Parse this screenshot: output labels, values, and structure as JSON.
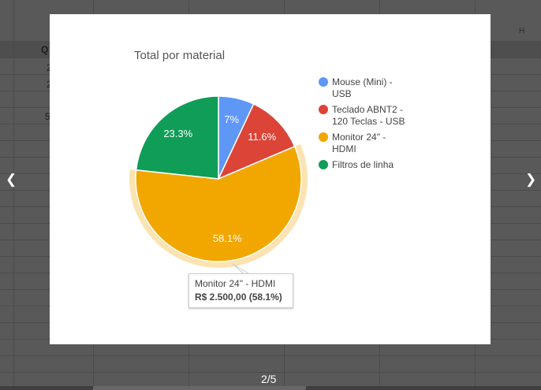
{
  "sheet": {
    "column_letter": "H",
    "visible_cells": [
      "Q",
      "2",
      "2",
      "5"
    ]
  },
  "chart": {
    "title": "Total por material",
    "legend": [
      {
        "label_lines": [
          "Mouse (Mini) -",
          "USB"
        ],
        "color": "#5e97f6"
      },
      {
        "label_lines": [
          "Teclado ABNT2 -",
          "120 Teclas - USB"
        ],
        "color": "#db4437"
      },
      {
        "label_lines": [
          "Monitor 24\" -",
          "HDMI"
        ],
        "color": "#f2a600"
      },
      {
        "label_lines": [
          "Filtros de linha"
        ],
        "color": "#0f9d58"
      }
    ],
    "tooltip": {
      "label": "Monitor 24\" - HDMI",
      "value": "R$ 2.500,00 (58.1%)"
    }
  },
  "chart_data": {
    "type": "pie",
    "title": "Total por material",
    "categories": [
      "Mouse (Mini) - USB",
      "Teclado ABNT2 - 120 Teclas - USB",
      "Monitor 24\" - HDMI",
      "Filtros de linha"
    ],
    "values": [
      7,
      11.6,
      58.1,
      23.3
    ],
    "value_labels": [
      "7%",
      "11.6%",
      "58.1%",
      "23.3%"
    ],
    "colors": [
      "#5e97f6",
      "#db4437",
      "#f2a600",
      "#0f9d58"
    ],
    "highlighted_slice": "Monitor 24\" - HDMI",
    "legend_position": "right"
  },
  "navigation": {
    "prev_icon": "chevron-left-icon",
    "next_icon": "chevron-right-icon",
    "prev_glyph": "❮",
    "next_glyph": "❯",
    "pager": "2/5"
  }
}
